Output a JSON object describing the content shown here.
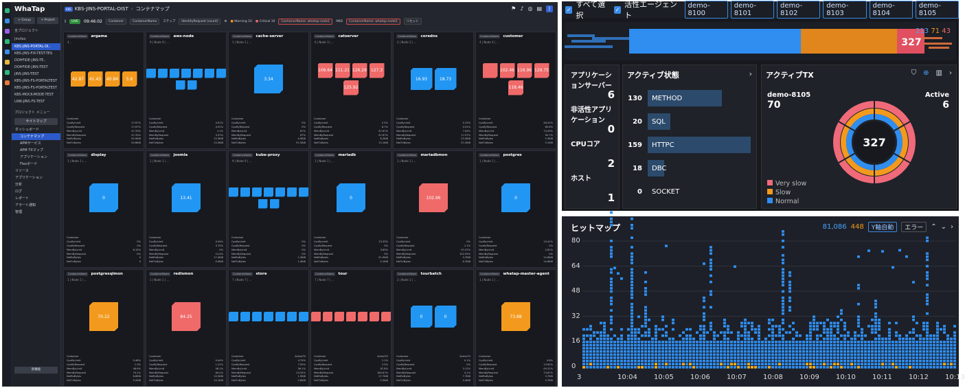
{
  "app": {
    "logo": "WhaTap",
    "project_badge": "K8S",
    "project": "KBS-JINS-PORTAL-DIST",
    "page": "コンテナマップ"
  },
  "sidebar": {
    "group_btn": "+ Group",
    "project_btn": "+ Project",
    "all_projects": "全プロジェクト",
    "folder": "Jinsfao",
    "projects": [
      "KBS-JINS-PORTAL-DI..",
      "KBS-JINS-FIX-TEST-TES",
      "DOHFIDE-JINS-TE..",
      "DOHFIDE-JINS-TEST",
      "JINS-JINS-TEST",
      "KBS-JINS-FS-PORTALTEST",
      "KBS-JINS-FS-PORTALTEST",
      "KBS-MOCK-MODE-TEST",
      "LINK-JINS-FS-TEST"
    ],
    "menu_title": "プロジェクト メニュー",
    "sitemap": "サイトマップ",
    "menu": [
      "ダッシュボード",
      "コンテナマップ",
      "APMサービス",
      "APM TXマップ",
      "アプリケーション",
      "Flexボード",
      "リソース",
      "アプリケーション",
      "分析",
      "ログ",
      "レポート",
      "アラート通知",
      "管理"
    ],
    "footer": "新機能"
  },
  "filterbar": {
    "live": "LIVE",
    "time": "09:46:02",
    "container": "Container",
    "containername": "ContainerName",
    "selector": "ステップ",
    "identity": "IdentityRequest (count)",
    "warning": "Warning",
    "warning_count": "10",
    "critical": "Critical",
    "critical_count": "10",
    "filter1": "ContainerName: whatap-node1",
    "and": "AND",
    "filter2": "ContainerName: whatap-node2",
    "reset": "リセット"
  },
  "cards": [
    {
      "name": "argama",
      "tag": "ContainerName",
      "sub": "4 ...",
      "color": "#f39a1e",
      "boxes": [
        "42.87",
        "41.43",
        "40.84",
        "5.6"
      ],
      "stats": [
        [
          "Container",
          ""
        ],
        [
          "CpuByLimit",
          "27.67%"
        ],
        [
          "CpuByRequest",
          "27.67%"
        ],
        [
          "MemByLimit",
          "47.33%"
        ],
        [
          "MemByRequest",
          "47.33%"
        ],
        [
          "NetRxBytes",
          "54.9KiB"
        ],
        [
          "NetTxBytes",
          "50.8KiB"
        ]
      ]
    },
    {
      "name": "aws-node",
      "tag": "ContainerName",
      "sub": "9 | Node 9 | ...",
      "color": "#2296f3",
      "boxes": [
        "",
        "",
        "",
        "",
        "",
        "",
        "",
        "",
        ""
      ],
      "stats": [
        [
          "Container",
          ""
        ],
        [
          "CpuByLimit",
          "4.91%"
        ],
        [
          "CpuByRequest",
          "4.91%"
        ],
        [
          "MemByLimit",
          "1.1%"
        ],
        [
          "MemByRequest",
          "3.37%"
        ],
        [
          "NetRxBytes",
          "15.3KiB"
        ],
        [
          "NetTxBytes",
          "15.3KiB"
        ]
      ]
    },
    {
      "name": "cache-server",
      "tag": "ContainerName",
      "sub": "1 | Node 1 | ...",
      "color": "#2296f3",
      "boxes": [
        "3.34"
      ],
      "stats": [
        [
          "Container",
          ""
        ],
        [
          "CpuByLimit",
          "0%"
        ],
        [
          "CpuByRequest",
          "0%"
        ],
        [
          "MemByLimit",
          "67%"
        ],
        [
          "MemByRequest",
          "67%"
        ],
        [
          "NetRxBytes",
          "4.9KiB"
        ],
        [
          "NetTxBytes",
          "91.5KiB"
        ]
      ]
    },
    {
      "name": "catserver",
      "tag": "ContainerName",
      "sub": "6 | Node 3 | ...",
      "color": "#f06a6a",
      "boxes": [
        "109.64",
        "111.21",
        "126.29",
        "127.3",
        "125.92"
      ],
      "stats": [
        [
          "Container",
          ""
        ],
        [
          "CpuByLimit",
          "2.5%"
        ],
        [
          "CpuByRequest",
          "8.7%"
        ],
        [
          "MemByLimit",
          "67.67%"
        ],
        [
          "MemByRequest",
          "67.67%"
        ],
        [
          "NetRxBytes",
          "8.2KiB"
        ],
        [
          "NetTxBytes",
          "15.1KiB"
        ]
      ]
    },
    {
      "name": "coredns",
      "tag": "ContainerName",
      "sub": "2 | Node 2 | ...",
      "color": "#2296f3",
      "boxes": [
        "16.93",
        "18.73"
      ],
      "stats": [
        [
          "Container",
          ""
        ],
        [
          "CpuByLimit",
          "0.15%"
        ],
        [
          "CpuByRequest",
          "0.51%"
        ],
        [
          "MemByLimit",
          "7.04%"
        ],
        [
          "MemByRequest",
          "17.07%"
        ],
        [
          "NetRxBytes",
          "23.3KiB"
        ],
        [
          "NetTxBytes",
          "37.2KiB"
        ]
      ]
    },
    {
      "name": "customer",
      "tag": "ContainerName",
      "sub": "4 | Node 4 | ...",
      "color": "#f06a6a",
      "boxes": [
        "",
        "102.46",
        "116.96",
        "129.75",
        "118.46"
      ],
      "stats": [
        [
          "Container",
          ""
        ],
        [
          "CpuByLimit",
          "48.41%"
        ],
        [
          "CpuByRequest",
          "80.6%"
        ],
        [
          "MemByLimit",
          "74.49%"
        ],
        [
          "MemByRequest",
          "90.7%"
        ],
        [
          "NetRxBytes",
          "5.3KiB"
        ],
        [
          "NetTxBytes",
          "5.1KiB"
        ]
      ]
    },
    {
      "name": "display",
      "tag": "ContainerName",
      "sub": "1 | Node 1 | ...",
      "color": "#2296f3",
      "boxes": [
        "0"
      ],
      "stats": [
        [
          "Container",
          ""
        ],
        [
          "CpuByLimit",
          "0%"
        ],
        [
          "CpuByRequest",
          "0%"
        ],
        [
          "MemByLimit",
          "6.15%"
        ],
        [
          "MemByRequest",
          "0%"
        ],
        [
          "NetRxBytes",
          "0"
        ],
        [
          "NetTxBytes",
          "0"
        ]
      ]
    },
    {
      "name": "joomla",
      "tag": "ContainerName",
      "sub": "1 | Node 1 | ...",
      "color": "#2296f3",
      "boxes": [
        "13.41"
      ],
      "stats": [
        [
          "Container",
          ""
        ],
        [
          "CpuByLimit",
          "0.45%"
        ],
        [
          "CpuByRequest",
          "3.75%"
        ],
        [
          "MemByLimit",
          "0%"
        ],
        [
          "MemByRequest",
          "13.4%"
        ],
        [
          "NetRxBytes",
          "17.4KiB"
        ],
        [
          "NetTxBytes",
          "9.9KiB"
        ]
      ]
    },
    {
      "name": "kube-proxy",
      "tag": "ContainerName",
      "sub": "9 | Node 9 | ...",
      "color": "#2296f3",
      "boxes": [
        "",
        "",
        "",
        "",
        "",
        "",
        "",
        "",
        ""
      ],
      "stats": [
        [
          "Container",
          ""
        ],
        [
          "CpuByLimit",
          "0%"
        ],
        [
          "CpuByRequest",
          "0%"
        ],
        [
          "MemByLimit",
          "0%"
        ],
        [
          "MemByRequest",
          "0%"
        ],
        [
          "NetRxBytes",
          "1.4KiB"
        ],
        [
          "NetTxBytes",
          "1.4KiB"
        ]
      ]
    },
    {
      "name": "mariadb",
      "tag": "ContainerName",
      "sub": "1 | Node 1 | ...",
      "color": "#2296f3",
      "boxes": [
        "0"
      ],
      "stats": [
        [
          "Container",
          ""
        ],
        [
          "CpuByLimit",
          "23.33%"
        ],
        [
          "CpuByRequest",
          "0%"
        ],
        [
          "MemByLimit",
          "3.63%"
        ],
        [
          "MemByRequest",
          "0%"
        ],
        [
          "NetRxBytes",
          "51.9KiB"
        ],
        [
          "NetTxBytes",
          "5.1KiB"
        ]
      ]
    },
    {
      "name": "mariadbmon",
      "tag": "ContainerName",
      "sub": "1 | Node 1 | ...",
      "color": "#f06a6a",
      "boxes": [
        "102.96"
      ],
      "stats": [
        [
          "Container",
          ""
        ],
        [
          "CpuByLimit",
          "0%"
        ],
        [
          "CpuByRequest",
          "1.1%"
        ],
        [
          "MemByLimit",
          "97.47%"
        ],
        [
          "MemByRequest",
          "102.95%"
        ],
        [
          "NetRxBytes",
          "3.7KiB"
        ],
        [
          "NetTxBytes",
          "6.7KiB"
        ]
      ]
    },
    {
      "name": "postgres",
      "tag": "ContainerName",
      "sub": "1 | Node 1 | ...",
      "color": "#2296f3",
      "boxes": [
        "0"
      ],
      "stats": [
        [
          "Container",
          ""
        ],
        [
          "CpuByLimit",
          "13.41%"
        ],
        [
          "CpuByRequest",
          "0%"
        ],
        [
          "MemByLimit",
          "2.81%"
        ],
        [
          "MemByRequest",
          "0%"
        ],
        [
          "NetRxBytes",
          "14.6KiB"
        ],
        [
          "NetTxBytes",
          "14.6KiB"
        ]
      ]
    },
    {
      "name": "postgresqlmon",
      "tag": "ContainerName",
      "sub": "1 | Node 1 | ...",
      "color": "#f39a1e",
      "boxes": [
        "70.22"
      ],
      "stats": [
        [
          "Container",
          ""
        ],
        [
          "CpuByLimit",
          "0.46%"
        ],
        [
          "CpuByRequest",
          "1.3%"
        ],
        [
          "MemByLimit",
          "46.6%"
        ],
        [
          "MemByRequest",
          "70.2%"
        ],
        [
          "NetRxBytes",
          "8.8KiB"
        ],
        [
          "NetTxBytes",
          "9.2KiB"
        ]
      ]
    },
    {
      "name": "redismon",
      "tag": "ContainerName",
      "sub": "1 | Node 1 | ...",
      "color": "#f06a6a",
      "boxes": [
        "84.25"
      ],
      "stats": [
        [
          "Container",
          ""
        ],
        [
          "CpuByLimit",
          "0.44%"
        ],
        [
          "CpuByRequest",
          "1.21%"
        ],
        [
          "MemByLimit",
          "56.1%"
        ],
        [
          "MemByRequest",
          "84.2%"
        ],
        [
          "NetRxBytes",
          "10.5KiB"
        ],
        [
          "NetTxBytes",
          "10.1KiB"
        ]
      ]
    },
    {
      "name": "store",
      "tag": "ContainerName",
      "sub": "7 | Node 7 | ...",
      "color": "#2296f3",
      "boxes": [
        "",
        "",
        "",
        "",
        "",
        "",
        ""
      ],
      "stats": [
        [
          "Container",
          "ActiveTX"
        ],
        [
          "CpuByLimit",
          "4.79%"
        ],
        [
          "CpuByRequest",
          "7.95%"
        ],
        [
          "MemByLimit",
          "56.1%"
        ],
        [
          "MemByRequest",
          "23.35%"
        ],
        [
          "NetRxBytes",
          "1.5KiB"
        ],
        [
          "NetTxBytes",
          "2.8KiB"
        ]
      ]
    },
    {
      "name": "tour",
      "tag": "ContainerName",
      "sub": "7 | Node 7 | ...",
      "color": "#f06a6a",
      "boxes": [
        "",
        "",
        "",
        "",
        "",
        "",
        ""
      ],
      "stats": [
        [
          "Container",
          "ActiveTX"
        ],
        [
          "CpuByLimit",
          "1.1%"
        ],
        [
          "CpuByRequest",
          "2.5%"
        ],
        [
          "MemByLimit",
          "87.8%"
        ],
        [
          "MemByRequest",
          "160.67%"
        ],
        [
          "NetRxBytes",
          "27.7KiB"
        ],
        [
          "NetTxBytes",
          "5.9KiB"
        ]
      ]
    },
    {
      "name": "tourbatch",
      "tag": "ContainerName",
      "sub": "2 | Node 2 | ...",
      "color": "#2296f3",
      "boxes": [
        "0",
        "0"
      ],
      "stats": [
        [
          "Container",
          "ActiveTX"
        ],
        [
          "CpuByLimit",
          "0.1%"
        ],
        [
          "CpuByRequest",
          "0%"
        ],
        [
          "MemByLimit",
          "3.12%"
        ],
        [
          "MemByRequest",
          "4.1%"
        ],
        [
          "NetRxBytes",
          "7.7KiB"
        ],
        [
          "NetTxBytes",
          "4.4KiB"
        ]
      ]
    },
    {
      "name": "whatap-master-agent",
      "tag": "ContainerName",
      "sub": "1 | Node 1 | ...",
      "color": "#f39a1e",
      "boxes": [
        "73.88"
      ],
      "stats": [
        [
          "Container",
          ""
        ],
        [
          "CpuByLimit",
          "0.8%"
        ],
        [
          "CpuByRequest",
          "13.62%"
        ],
        [
          "MemByLimit",
          "49.31%"
        ],
        [
          "MemByRequest",
          "73.87%"
        ],
        [
          "NetRxBytes",
          "3.7KiB"
        ],
        [
          "NetTxBytes",
          "3.7KiB"
        ]
      ]
    }
  ],
  "apm": {
    "select_all": "すべて選択",
    "active_agents": "活性エージェント",
    "agents": [
      "demo-8100",
      "demo-8101",
      "demo-8102",
      "demo-8103",
      "demo-8104",
      "demo-8105"
    ],
    "strip_total": "327",
    "count_blue": "213",
    "count_orange": "71",
    "count_red": "43",
    "kv": [
      {
        "label": "アプリケーションサーバー",
        "value": "6"
      },
      {
        "label": "非活性アプリケーション",
        "value": "0"
      },
      {
        "label": "CPUコア",
        "value": "2"
      },
      {
        "label": "ホスト",
        "value": "1"
      }
    ],
    "active_state": {
      "title": "アクティブ状態",
      "rows": [
        {
          "n": "130",
          "label": "METHOD",
          "pct": 0.72
        },
        {
          "n": "20",
          "label": "SQL",
          "pct": 0.22
        },
        {
          "n": "159",
          "label": "HTTPC",
          "pct": 1.0
        },
        {
          "n": "18",
          "label": "DBC",
          "pct": 0.16
        },
        {
          "n": "0",
          "label": "SOCKET",
          "pct": 0
        }
      ]
    },
    "active_tx": {
      "title": "アクティブTX",
      "agent": "demo-8105",
      "agent_value": "70",
      "active_label": "Active",
      "active_value": "6",
      "center": "327",
      "legend": [
        {
          "label": "Very slow",
          "color": "#f06a7a"
        },
        {
          "label": "Slow",
          "color": "#f39a1e"
        },
        {
          "label": "Normal",
          "color": "#2f8ef0"
        }
      ]
    }
  },
  "heatmap": {
    "title": "ヒットマップ",
    "count_blue": "81,086",
    "count_orange": "448",
    "y_auto": "Y軸自動",
    "error": "エラー",
    "y_ticks": [
      "80",
      "64",
      "48",
      "32",
      "16",
      "0"
    ],
    "x_ticks": [
      "3",
      "10:04",
      "10:05",
      "10:06",
      "10:07",
      "10:08",
      "10:09",
      "10:10",
      "10:11",
      "10:12",
      "10:13"
    ]
  }
}
